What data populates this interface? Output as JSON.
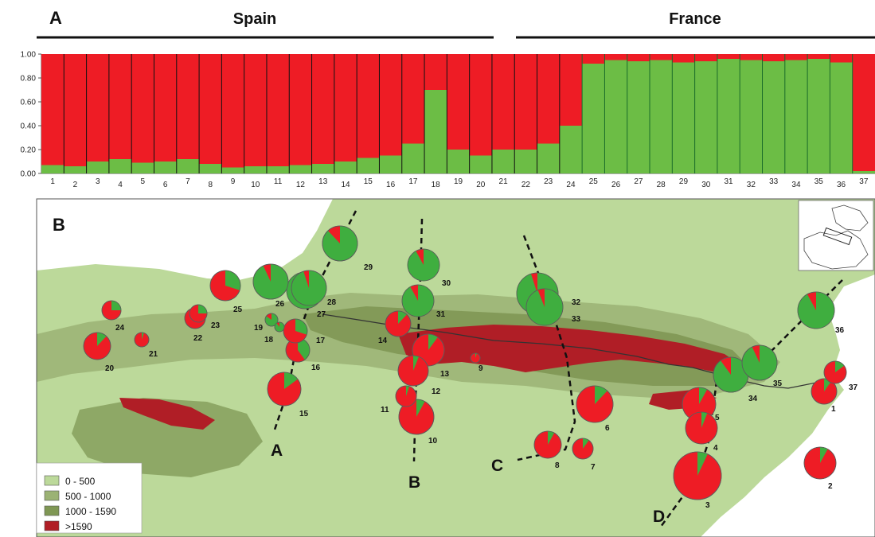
{
  "panel_a": {
    "label": "A",
    "regions": [
      "Spain",
      "France"
    ]
  },
  "panel_b": {
    "label": "B",
    "transects": [
      "A",
      "B",
      "C",
      "D"
    ]
  },
  "legend": {
    "items": [
      {
        "label": "0 - 500",
        "color": "#bcd99a"
      },
      {
        "label": "500 - 1000",
        "color": "#9bb274"
      },
      {
        "label": "1000 - 1590",
        "color": "#7f9754"
      },
      {
        "label": ">1590",
        "color": "#b01e26"
      }
    ]
  },
  "colors": {
    "cluster_red": "#ee1c25",
    "cluster_green": "#3fae3f",
    "bar_green": "#6cbd45",
    "map_sea": "#ffffff",
    "map_low": "#bcd99a"
  },
  "chart_data": [
    {
      "type": "bar",
      "stacked": true,
      "title": "",
      "xlabel": "",
      "ylabel": "",
      "ylim": [
        0,
        1
      ],
      "yticks": [
        "0.00",
        "0.20",
        "0.40",
        "0.60",
        "0.80",
        "1.00"
      ],
      "categories": [
        "1",
        "2",
        "3",
        "4",
        "5",
        "6",
        "7",
        "8",
        "9",
        "10",
        "11",
        "12",
        "13",
        "14",
        "15",
        "16",
        "17",
        "18",
        "19",
        "20",
        "21",
        "22",
        "23",
        "24",
        "25",
        "26",
        "27",
        "28",
        "29",
        "30",
        "31",
        "32",
        "33",
        "34",
        "35",
        "36",
        "37"
      ],
      "series": [
        {
          "values": [
            0.07,
            0.06,
            0.1,
            0.12,
            0.09,
            0.1,
            0.12,
            0.08,
            0.05,
            0.06,
            0.06,
            0.07,
            0.08,
            0.1,
            0.13,
            0.15,
            0.25,
            0.7,
            0.2,
            0.15,
            0.2,
            0.2,
            0.25,
            0.4,
            0.92,
            0.95,
            0.94,
            0.95,
            0.93,
            0.94,
            0.96,
            0.95,
            0.94,
            0.95,
            0.96,
            0.93,
            0.02
          ]
        },
        {
          "values": [
            0.93,
            0.94,
            0.9,
            0.88,
            0.91,
            0.9,
            0.88,
            0.92,
            0.95,
            0.94,
            0.94,
            0.93,
            0.92,
            0.9,
            0.87,
            0.85,
            0.75,
            0.3,
            0.8,
            0.85,
            0.8,
            0.8,
            0.75,
            0.6,
            0.08,
            0.05,
            0.06,
            0.05,
            0.07,
            0.06,
            0.04,
            0.05,
            0.06,
            0.05,
            0.04,
            0.07,
            0.98
          ]
        }
      ]
    },
    {
      "type": "pie",
      "title": "",
      "pies": [
        {
          "label": "1",
          "values": [
            0.1,
            0.9
          ]
        },
        {
          "label": "2",
          "values": [
            0.08,
            0.92
          ]
        },
        {
          "label": "3",
          "values": [
            0.07,
            0.93
          ]
        },
        {
          "label": "4",
          "values": [
            0.06,
            0.94
          ]
        },
        {
          "label": "5",
          "values": [
            0.08,
            0.92
          ]
        },
        {
          "label": "6",
          "values": [
            0.12,
            0.88
          ]
        },
        {
          "label": "7",
          "values": [
            0.1,
            0.9
          ]
        },
        {
          "label": "8",
          "values": [
            0.08,
            0.92
          ]
        },
        {
          "label": "9",
          "values": [
            0.05,
            0.95
          ]
        },
        {
          "label": "10",
          "values": [
            0.08,
            0.92
          ]
        },
        {
          "label": "11",
          "values": [
            0.05,
            0.95
          ]
        },
        {
          "label": "12",
          "values": [
            0.06,
            0.94
          ]
        },
        {
          "label": "13",
          "values": [
            0.1,
            0.9
          ]
        },
        {
          "label": "14",
          "values": [
            0.12,
            0.88
          ]
        },
        {
          "label": "15",
          "values": [
            0.15,
            0.85
          ]
        },
        {
          "label": "16",
          "values": [
            0.4,
            0.6
          ]
        },
        {
          "label": "17",
          "values": [
            0.3,
            0.7
          ]
        },
        {
          "label": "18",
          "values": [
            0.9,
            0.1
          ]
        },
        {
          "label": "19",
          "values": [
            0.85,
            0.15
          ]
        },
        {
          "label": "20",
          "values": [
            0.12,
            0.88
          ]
        },
        {
          "label": "21",
          "values": [
            0.05,
            0.95
          ]
        },
        {
          "label": "22",
          "values": [
            0.15,
            0.85
          ]
        },
        {
          "label": "23",
          "values": [
            0.25,
            0.75
          ]
        },
        {
          "label": "24",
          "values": [
            0.25,
            0.75
          ]
        },
        {
          "label": "25",
          "values": [
            0.3,
            0.7
          ]
        },
        {
          "label": "26",
          "values": [
            0.93,
            0.07
          ]
        },
        {
          "label": "27",
          "values": [
            0.94,
            0.06
          ]
        },
        {
          "label": "28",
          "values": [
            0.95,
            0.05
          ]
        },
        {
          "label": "29",
          "values": [
            0.88,
            0.12
          ]
        },
        {
          "label": "30",
          "values": [
            0.92,
            0.08
          ]
        },
        {
          "label": "31",
          "values": [
            0.92,
            0.08
          ]
        },
        {
          "label": "32",
          "values": [
            0.95,
            0.05
          ]
        },
        {
          "label": "33",
          "values": [
            0.94,
            0.06
          ]
        },
        {
          "label": "34",
          "values": [
            0.9,
            0.1
          ]
        },
        {
          "label": "35",
          "values": [
            0.93,
            0.07
          ]
        },
        {
          "label": "36",
          "values": [
            0.92,
            0.08
          ]
        },
        {
          "label": "37",
          "values": [
            0.15,
            0.85
          ]
        }
      ]
    }
  ]
}
